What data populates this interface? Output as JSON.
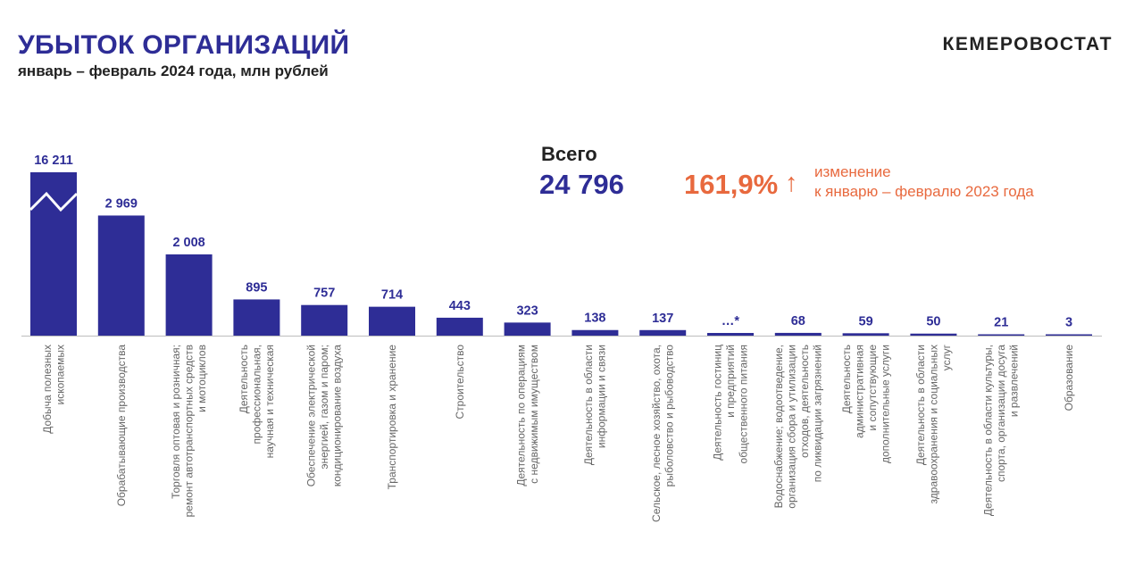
{
  "header": {
    "title": "УБЫТОК ОРГАНИЗАЦИЙ",
    "subtitle": "январь – февраль 2024 года, млн рублей",
    "logo": "КЕМЕРОВОСТАТ"
  },
  "summary": {
    "total_label": "Всего",
    "total_value": "24 796",
    "change_value": "161,9%",
    "change_arrow": "↑",
    "change_text_line1": "изменение",
    "change_text_line2": "к январю – февралю 2023 года"
  },
  "colors": {
    "bar": "#2E2D96",
    "label": "#2E2D96",
    "accent": "#E8693E",
    "category_text": "#666666",
    "axis": "#BDBDBD"
  },
  "chart_data": {
    "type": "bar",
    "y_axis_broken": true,
    "categories": [
      [
        "Добыча полезных",
        "ископаемых"
      ],
      [
        "Обрабатывающие производства"
      ],
      [
        "Торговля оптовая и розничная;",
        "ремонт автотранспортных средств",
        "и мотоциклов"
      ],
      [
        "Деятельность",
        "профессиональная,",
        "научная и техническая"
      ],
      [
        "Обеспечение электрической",
        "энергией, газом и паром;",
        "кондиционирование воздуха"
      ],
      [
        "Транспортировка и хранение"
      ],
      [
        "Строительство"
      ],
      [
        "Деятельность по операциям",
        "с недвижимым имуществом"
      ],
      [
        "Деятельность в области",
        "информации и связи"
      ],
      [
        "Сельское, лесное хозяйство, охота,",
        "рыболовство и рыбоводство"
      ],
      [
        "Деятельность гостиниц",
        "и предприятий",
        "общественного питания"
      ],
      [
        "Водоснабжение; водоотведение,",
        "организация сбора и утилизации",
        "отходов, деятельность",
        "по ликвидации загрязнений"
      ],
      [
        "Деятельность",
        "административная",
        "и сопутствующие",
        "дополнительные услуги"
      ],
      [
        "Деятельность в области",
        "здравоохранения и социальных",
        "услуг"
      ],
      [
        "Деятельность в области культуры,",
        "спорта, организации досуга",
        "и развлечений"
      ],
      [
        "Образование"
      ]
    ],
    "values": [
      16211,
      2969,
      2008,
      895,
      757,
      714,
      443,
      323,
      138,
      137,
      null,
      68,
      59,
      50,
      21,
      3
    ],
    "value_labels": [
      "16 211",
      "2 969",
      "2 008",
      "895",
      "757",
      "714",
      "443",
      "323",
      "138",
      "137",
      "…*",
      "68",
      "59",
      "50",
      "21",
      "3"
    ]
  }
}
